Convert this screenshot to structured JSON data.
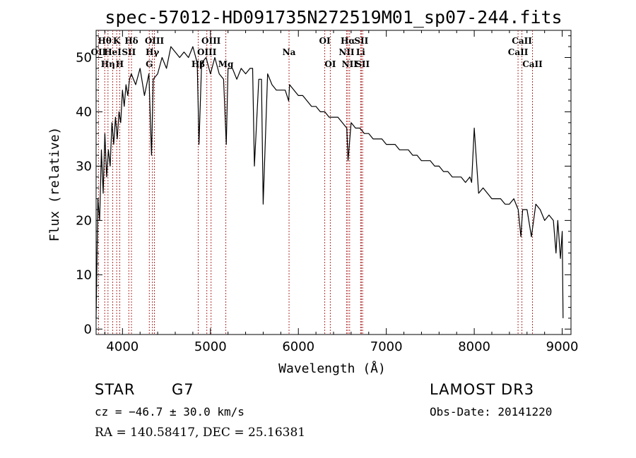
{
  "chart_data": {
    "type": "line",
    "title": "spec-57012-HD091735N272519M01_sp07-244.fits",
    "xlabel": "Wavelength (Å)",
    "ylabel": "Flux (relative)",
    "xlim": [
      3700,
      9100
    ],
    "ylim": [
      -1,
      55
    ],
    "xticks": [
      4000,
      5000,
      6000,
      7000,
      8000,
      9000
    ],
    "yticks": [
      0,
      10,
      20,
      30,
      40,
      50
    ],
    "series": [
      {
        "name": "flux",
        "x": [
          3700,
          3720,
          3740,
          3760,
          3780,
          3800,
          3820,
          3840,
          3860,
          3880,
          3900,
          3920,
          3940,
          3960,
          3980,
          4000,
          4020,
          4040,
          4060,
          4080,
          4100,
          4150,
          4200,
          4250,
          4300,
          4330,
          4350,
          4400,
          4450,
          4500,
          4550,
          4600,
          4650,
          4700,
          4750,
          4800,
          4850,
          4870,
          4900,
          4950,
          5000,
          5050,
          5100,
          5150,
          5180,
          5200,
          5250,
          5300,
          5350,
          5400,
          5450,
          5480,
          5500,
          5550,
          5580,
          5600,
          5650,
          5700,
          5750,
          5800,
          5850,
          5890,
          5900,
          5950,
          6000,
          6050,
          6100,
          6150,
          6200,
          6250,
          6300,
          6350,
          6400,
          6450,
          6500,
          6550,
          6565,
          6600,
          6650,
          6700,
          6750,
          6800,
          6850,
          6900,
          6950,
          7000,
          7050,
          7100,
          7150,
          7200,
          7250,
          7300,
          7350,
          7400,
          7450,
          7500,
          7550,
          7600,
          7650,
          7700,
          7750,
          7800,
          7850,
          7900,
          7950,
          7970,
          8000,
          8050,
          8100,
          8150,
          8200,
          8250,
          8300,
          8350,
          8400,
          8450,
          8500,
          8530,
          8550,
          8600,
          8650,
          8700,
          8750,
          8800,
          8850,
          8900,
          8930,
          8950,
          8980,
          9000,
          9010
        ],
        "y": [
          2,
          24,
          20,
          33,
          25,
          36,
          28,
          33,
          30,
          38,
          34,
          39,
          35,
          40,
          38,
          44,
          41,
          45,
          43,
          46,
          47,
          45,
          48,
          43,
          47,
          32,
          46,
          47,
          50,
          48,
          52,
          51,
          50,
          51,
          50,
          52,
          49,
          34,
          49,
          50,
          47,
          50,
          47,
          46,
          34,
          48,
          48,
          46,
          48,
          47,
          48,
          48,
          30,
          46,
          46,
          23,
          47,
          45,
          44,
          44,
          44,
          42,
          45,
          44,
          43,
          43,
          42,
          41,
          41,
          40,
          40,
          39,
          39,
          39,
          38,
          37,
          31,
          38,
          37,
          37,
          36,
          36,
          35,
          35,
          35,
          34,
          34,
          34,
          33,
          33,
          33,
          32,
          32,
          31,
          31,
          31,
          30,
          30,
          29,
          29,
          28,
          28,
          28,
          27,
          28,
          27,
          37,
          25,
          26,
          25,
          24,
          24,
          24,
          23,
          23,
          24,
          22,
          17,
          22,
          22,
          17,
          23,
          22,
          20,
          21,
          20,
          14,
          20,
          13,
          18,
          2
        ]
      }
    ],
    "emission_lines": [
      {
        "label": "Hθ",
        "x": 3798,
        "row": 1
      },
      {
        "label": "OII",
        "x": 3727,
        "row": 2
      },
      {
        "label": "Hη",
        "x": 3835,
        "row": 3
      },
      {
        "label": "K",
        "x": 3934,
        "row": 1
      },
      {
        "label": "HeI",
        "x": 3889,
        "row": 2
      },
      {
        "label": "H",
        "x": 3969,
        "row": 3
      },
      {
        "label": "Hδ",
        "x": 4102,
        "row": 1
      },
      {
        "label": "SII",
        "x": 4072,
        "row": 2
      },
      {
        "label": "OIII",
        "x": 4363,
        "row": 1
      },
      {
        "label": "Hγ",
        "x": 4340,
        "row": 2
      },
      {
        "label": "G",
        "x": 4305,
        "row": 3
      },
      {
        "label": "OIII",
        "x": 5007,
        "row": 1
      },
      {
        "label": "OIII",
        "x": 4959,
        "row": 2
      },
      {
        "label": "Hβ",
        "x": 4861,
        "row": 3
      },
      {
        "label": "Mg",
        "x": 5175,
        "row": 3
      },
      {
        "label": "Na",
        "x": 5894,
        "row": 2
      },
      {
        "label": "OI",
        "x": 6300,
        "row": 1
      },
      {
        "label": "OI",
        "x": 6363,
        "row": 3
      },
      {
        "label": "Hα",
        "x": 6563,
        "row": 1
      },
      {
        "label": "NII",
        "x": 6548,
        "row": 2
      },
      {
        "label": "NII",
        "x": 6583,
        "row": 3
      },
      {
        "label": "SII",
        "x": 6716,
        "row": 1
      },
      {
        "label": "Li",
        "x": 6708,
        "row": 2
      },
      {
        "label": "SII",
        "x": 6731,
        "row": 3
      },
      {
        "label": "CaII",
        "x": 8542,
        "row": 1
      },
      {
        "label": "CaII",
        "x": 8498,
        "row": 2
      },
      {
        "label": "CaII",
        "x": 8662,
        "row": 3
      }
    ]
  },
  "info": {
    "class_label": "STAR",
    "subclass": "G7",
    "survey": "LAMOST DR3",
    "cz": "cz = −46.7 ± 30.0 km/s",
    "obs_date": "Obs-Date: 20141220",
    "coords": "RA = 140.58417, DEC =  25.16381"
  },
  "colors": {
    "line_marker": "#b03030",
    "spectrum": "#000000"
  }
}
